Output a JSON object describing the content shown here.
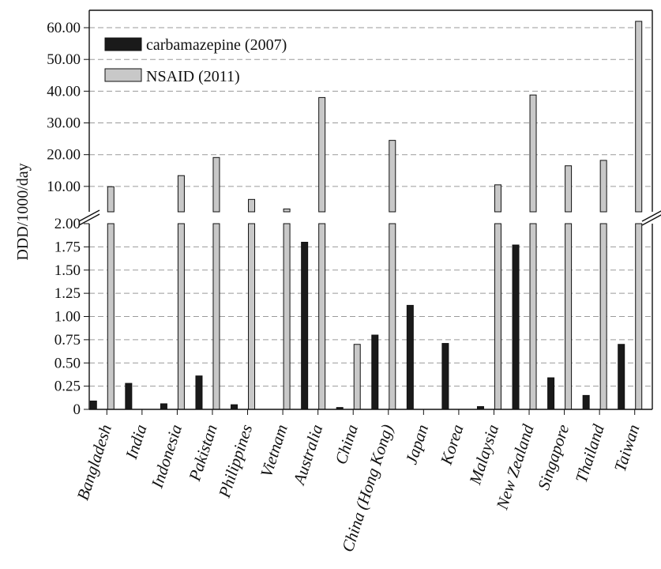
{
  "chart_data": {
    "type": "bar",
    "title": "",
    "xlabel": "",
    "ylabel": "DDD/1000/day",
    "grid": true,
    "legend_position": "top-left",
    "axis_break": {
      "lower_range": [
        0,
        2.0
      ],
      "upper_range": [
        2.0,
        62.0
      ]
    },
    "lower_ticks": [
      "0",
      "0.25",
      "0.50",
      "0.75",
      "1.00",
      "1.25",
      "1.50",
      "1.75",
      "2.00"
    ],
    "upper_ticks": [
      "10.00",
      "20.00",
      "30.00",
      "40.00",
      "50.00",
      "60.00"
    ],
    "categories": [
      "Bangladesh",
      "India",
      "Indonesia",
      "Pakistan",
      "Philippines",
      "Vietnam",
      "Australia",
      "China",
      "China (Hong Kong)",
      "Japan",
      "Korea",
      "Malaysia",
      "New Zealand",
      "Singapore",
      "Thailand",
      "Taiwan"
    ],
    "series": [
      {
        "name": "carbamazepine (2007)",
        "color": "#1a1a1a",
        "values": [
          0.09,
          0.28,
          0.06,
          0.36,
          0.05,
          null,
          1.8,
          0.02,
          0.8,
          1.12,
          0.71,
          0.03,
          1.77,
          0.34,
          0.15,
          0.7
        ]
      },
      {
        "name": "NSAID (2011)",
        "color": "#c8c8c8",
        "values": [
          9.9,
          null,
          13.4,
          19.1,
          5.9,
          2.9,
          38.0,
          0.7,
          24.5,
          null,
          null,
          10.5,
          38.8,
          16.5,
          18.2,
          62.0
        ]
      }
    ]
  }
}
